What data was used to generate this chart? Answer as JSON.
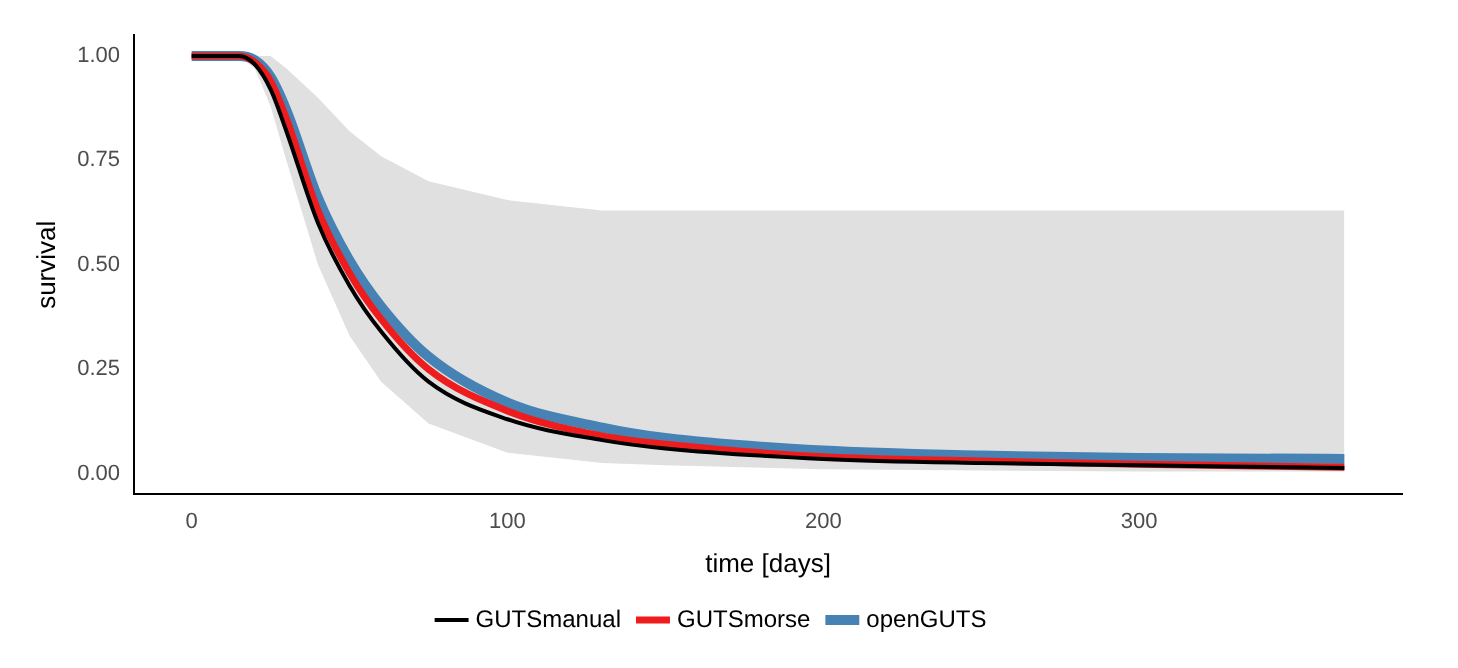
{
  "chart_data": {
    "type": "line",
    "xlabel": "time [days]",
    "ylabel": "survival",
    "x": [
      0,
      10,
      15,
      20,
      25,
      30,
      40,
      50,
      60,
      75,
      100,
      130,
      150,
      200,
      250,
      300,
      365
    ],
    "series": [
      {
        "name": "GUTSmanual",
        "color": "#000000",
        "values": [
          1,
          1,
          1,
          0.98,
          0.92,
          0.82,
          0.6,
          0.45,
          0.34,
          0.22,
          0.13,
          0.08,
          0.06,
          0.035,
          0.025,
          0.02,
          0.013
        ],
        "lower": [
          1,
          1,
          1,
          0.97,
          0.88,
          0.75,
          0.5,
          0.33,
          0.22,
          0.12,
          0.05,
          0.025,
          0.02,
          0.01,
          0.007,
          0.005,
          0.005
        ],
        "upper": [
          1,
          1,
          1,
          1,
          1,
          0.97,
          0.9,
          0.82,
          0.76,
          0.7,
          0.655,
          0.63,
          0.63,
          0.63,
          0.63,
          0.63,
          0.63
        ]
      },
      {
        "name": "GUTSmorse",
        "color": "#ee1c1c",
        "values": [
          1,
          1,
          1,
          0.985,
          0.94,
          0.85,
          0.63,
          0.48,
          0.37,
          0.25,
          0.15,
          0.09,
          0.07,
          0.04,
          0.03,
          0.022,
          0.015
        ]
      },
      {
        "name": "openGUTS",
        "color": "#4682b4",
        "values": [
          1,
          1,
          1,
          0.99,
          0.95,
          0.87,
          0.66,
          0.51,
          0.4,
          0.28,
          0.17,
          0.11,
          0.085,
          0.055,
          0.043,
          0.037,
          0.035
        ]
      }
    ],
    "xlim": [
      -18.25,
      383.25
    ],
    "xticks": [
      0,
      100,
      200,
      300
    ],
    "ylim": [
      -0.05,
      1.05
    ],
    "yticks": [
      {
        "value": 0,
        "label": "0.00"
      },
      {
        "value": 0.25,
        "label": "0.25"
      },
      {
        "value": 0.5,
        "label": "0.50"
      },
      {
        "value": 0.75,
        "label": "0.75"
      },
      {
        "value": 1,
        "label": "1.00"
      }
    ],
    "grid": false,
    "legend": "bottom",
    "marker": "none",
    "line_style": "solid"
  }
}
